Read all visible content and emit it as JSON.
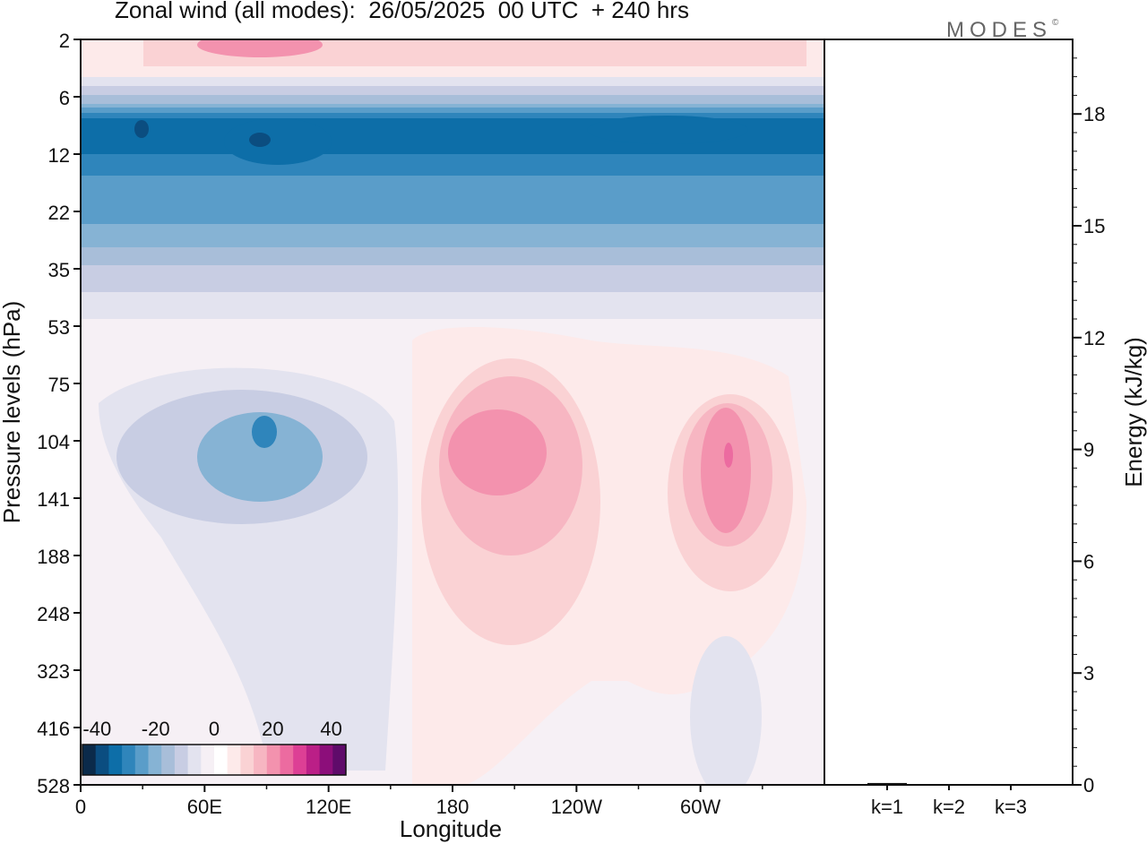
{
  "title": "Zonal wind (all modes):  26/05/2025  00 UTC  + 240 hrs",
  "brand": "MODES",
  "brand_mark": "©",
  "chart_data": [
    {
      "type": "heatmap",
      "xlabel": "Longitude",
      "ylabel": "Pressure levels (hPa)",
      "x_ticks": [
        "0",
        "60E",
        "120E",
        "180",
        "120W",
        "60W"
      ],
      "y_ticks": [
        "2",
        "6",
        "12",
        "22",
        "35",
        "53",
        "75",
        "104",
        "141",
        "188",
        "248",
        "323",
        "416",
        "528"
      ],
      "x_range_deg": [
        0,
        360
      ],
      "colorbar": {
        "labels": [
          "-40",
          "-20",
          "0",
          "20",
          "40"
        ],
        "levels": [
          -45,
          -40,
          -35,
          -30,
          -25,
          -20,
          -15,
          -10,
          -5,
          0,
          5,
          10,
          15,
          20,
          25,
          30,
          35,
          40,
          45
        ],
        "colors": [
          "#0b2a4a",
          "#0b4d80",
          "#0d6ea8",
          "#2f85bb",
          "#5a9dc9",
          "#86b3d4",
          "#a8bed9",
          "#c8cde3",
          "#e3e3ef",
          "#f6f0f5",
          "#ffffff",
          "#fdeaea",
          "#fad2d4",
          "#f7b6c2",
          "#f392ae",
          "#ec6ba0",
          "#dd3f95",
          "#bb1f87",
          "#8c0e7a",
          "#5f0b6a"
        ]
      }
    },
    {
      "type": "bar",
      "ylabel": "Energy (kJ/kg)",
      "categories": [
        "k=1",
        "k=2",
        "k=3"
      ],
      "values": [
        0.05,
        0.02,
        0.01
      ],
      "y_ticks": [
        "0",
        "3",
        "6",
        "9",
        "12",
        "15",
        "18"
      ],
      "ylim": [
        0,
        20
      ]
    }
  ]
}
